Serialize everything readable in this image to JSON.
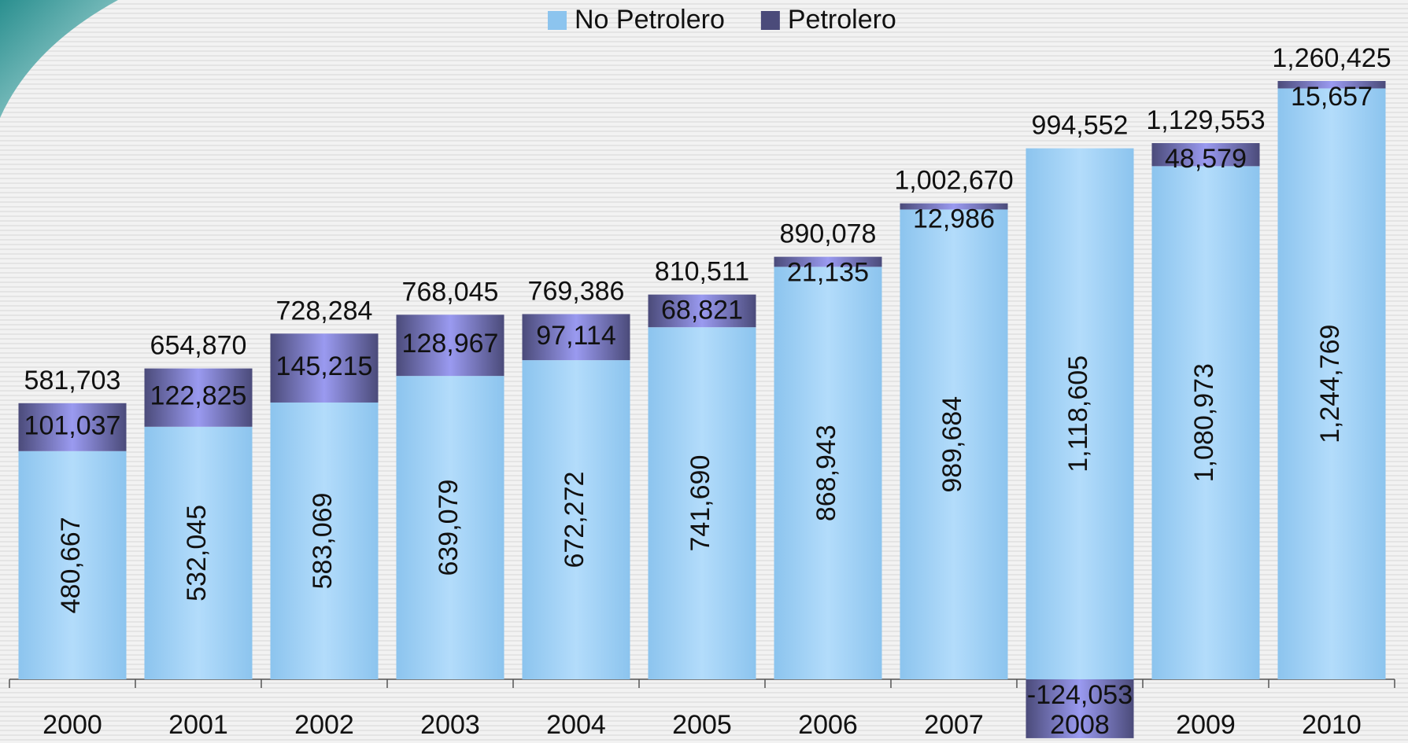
{
  "chart_data": {
    "type": "stacked-bar",
    "categories": [
      "2000",
      "2001",
      "2002",
      "2003",
      "2004",
      "2005",
      "2006",
      "2007",
      "2008",
      "2009",
      "2010"
    ],
    "series": [
      {
        "name": "No Petrolero",
        "color": "#8cc4ee",
        "values": [
          480667,
          532045,
          583069,
          639079,
          672272,
          741690,
          868943,
          989684,
          1118605,
          1080973,
          1244769
        ],
        "value_labels": [
          "480,667",
          "532,045",
          "583,069",
          "639,079",
          "672,272",
          "741,690",
          "868,943",
          "989,684",
          "1,118,605",
          "1,080,973",
          "1,244,769"
        ]
      },
      {
        "name": "Petrolero",
        "color": "#4b4b7a",
        "values": [
          101037,
          122825,
          145215,
          128967,
          97114,
          68821,
          21135,
          12986,
          -124053,
          48579,
          15657
        ],
        "value_labels": [
          "101,037",
          "122,825",
          "145,215",
          "128,967",
          "97,114",
          "68,821",
          "21,135",
          "12,986",
          "-124,053",
          "48,579",
          "15,657"
        ]
      }
    ],
    "totals": {
      "values": [
        581703,
        654870,
        728284,
        768045,
        769386,
        810511,
        890078,
        1002670,
        994552,
        1129553,
        1260425
      ],
      "value_labels": [
        "581,703",
        "654,870",
        "728,284",
        "768,045",
        "769,386",
        "810,511",
        "890,078",
        "1,002,670",
        "994,552",
        "1,129,553",
        "1,260,425"
      ]
    },
    "legend": "top"
  }
}
